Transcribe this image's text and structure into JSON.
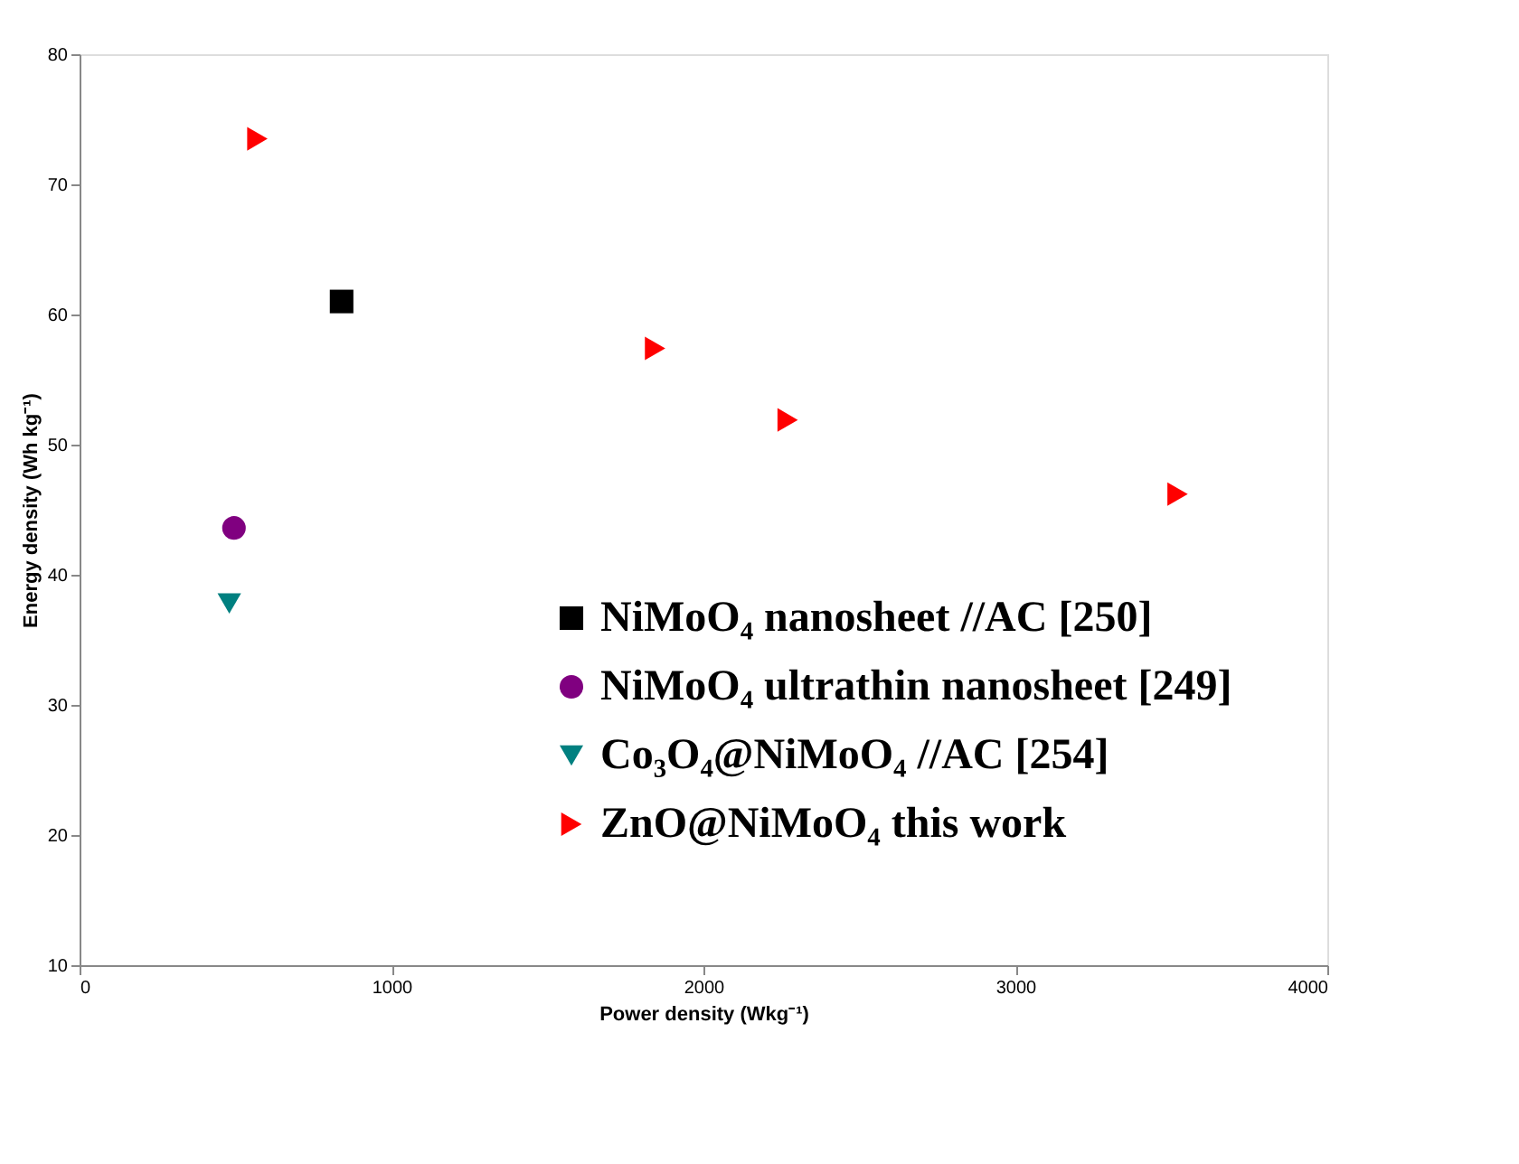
{
  "chart_data": {
    "type": "scatter",
    "xlabel": "Power density (Wkg⁻¹)",
    "ylabel": "Energy density (Wh kg⁻¹)",
    "xlim": [
      0,
      4000
    ],
    "xticks": [
      0,
      1000,
      2000,
      3000,
      4000
    ],
    "ylim": [
      10,
      80
    ],
    "yticks": [
      10,
      20,
      30,
      40,
      50,
      60,
      70,
      80
    ],
    "grid": false,
    "legend": "bottom",
    "series": [
      {
        "name": "NiMoO₄ nanosheet //AC [250]",
        "color": "#000000",
        "marker": "square",
        "x": [
          840
        ],
        "values": [
          61
        ]
      },
      {
        "name": "NiMoO₄ ultrathin nanosheet [249]",
        "color": "#800080",
        "marker": "circle",
        "x": [
          495
        ],
        "values": [
          43.6
        ]
      },
      {
        "name": "Co₃O₄@NiMoO₄ //AC [254]",
        "color": "#008080",
        "marker": "triangle-down",
        "x": [
          480
        ],
        "values": [
          37.8
        ]
      },
      {
        "name": "ZnO@NiMoO₄  this work",
        "color": "#ff0000",
        "marker": "triangle-right",
        "x": [
          570,
          1845,
          2270,
          3520
        ],
        "values": [
          73.5,
          57.4,
          51.9,
          46.2
        ]
      }
    ]
  }
}
